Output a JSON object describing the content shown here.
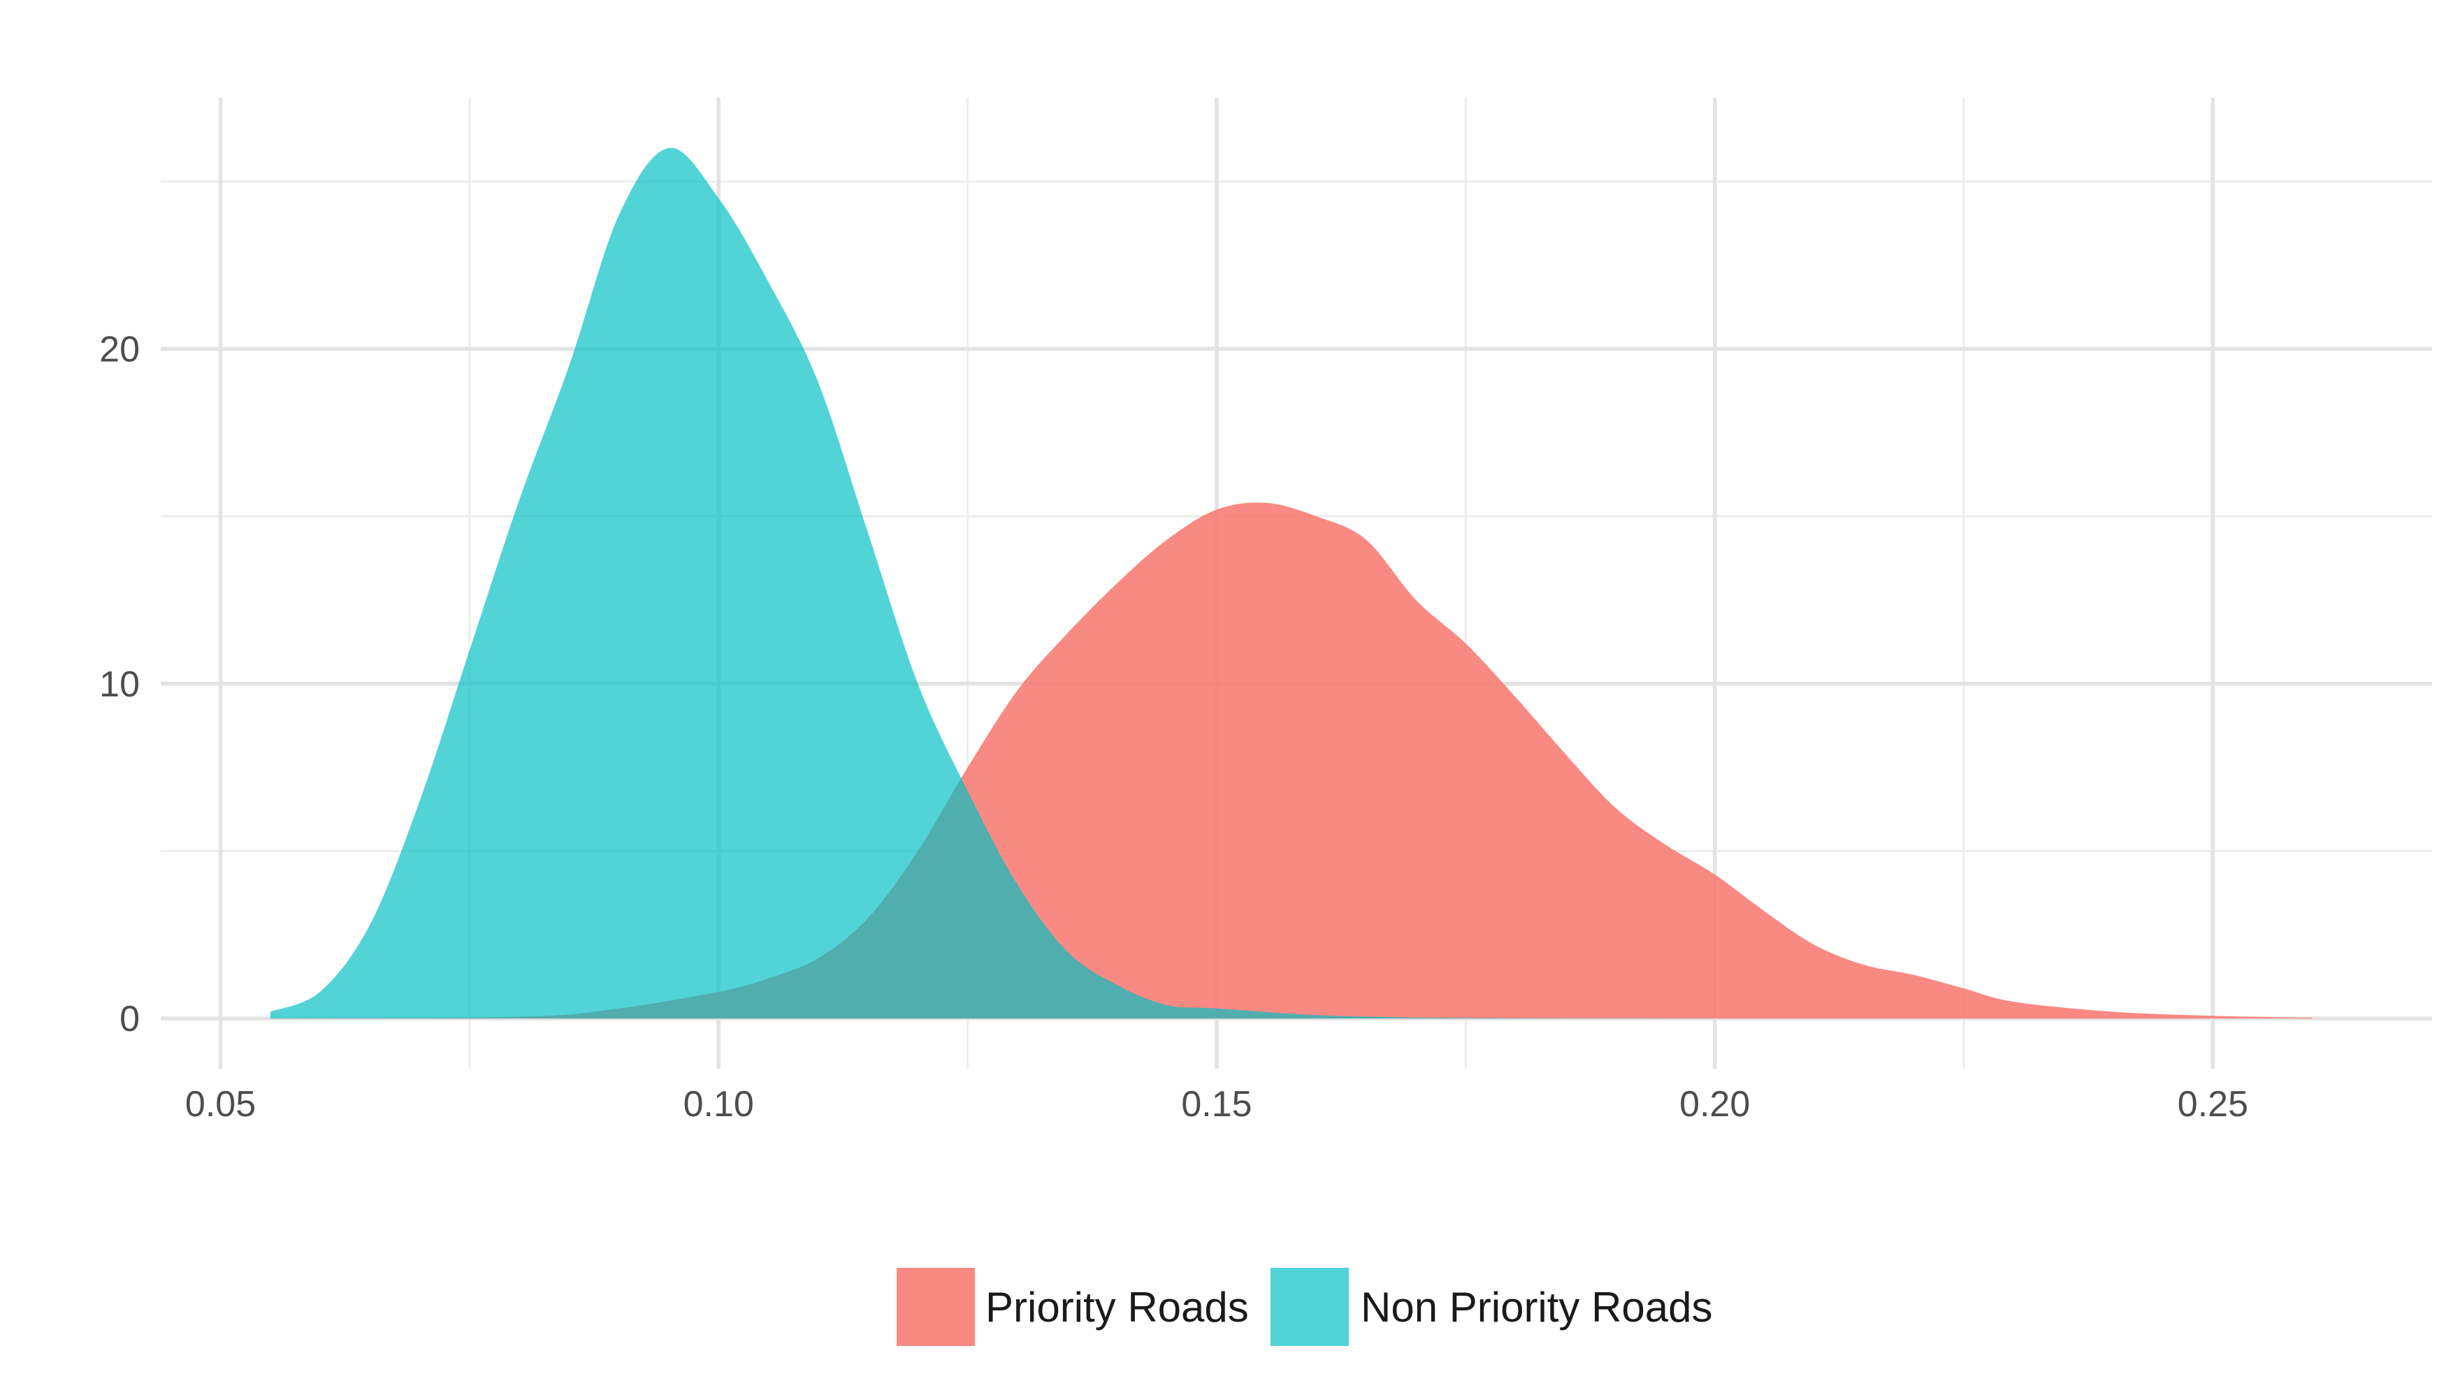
{
  "chart_data": {
    "type": "area",
    "chart_kind": "density",
    "title": "",
    "xlabel": "",
    "ylabel": "",
    "xlim": [
      0.044,
      0.272
    ],
    "ylim": [
      -1.5,
      27.5
    ],
    "x_ticks": [
      0.05,
      0.1,
      0.15,
      0.2,
      0.25
    ],
    "x_tick_labels": [
      "0.05",
      "0.10",
      "0.15",
      "0.20",
      "0.25"
    ],
    "x_minor_ticks": [
      0.075,
      0.125,
      0.175,
      0.225
    ],
    "y_ticks": [
      0,
      10,
      20
    ],
    "y_tick_labels": [
      "0",
      "10",
      "20"
    ],
    "y_minor_ticks": [
      5,
      15,
      25
    ],
    "grid": true,
    "legend_position": "bottom",
    "series": [
      {
        "name": "Priority Roads",
        "color": "#F8766D",
        "opacity": 0.85,
        "x": [
          0.055,
          0.08,
          0.09,
          0.1,
          0.105,
          0.11,
          0.115,
          0.12,
          0.125,
          0.13,
          0.135,
          0.14,
          0.145,
          0.15,
          0.155,
          0.16,
          0.165,
          0.17,
          0.175,
          0.18,
          0.185,
          0.19,
          0.195,
          0.2,
          0.205,
          0.21,
          0.215,
          0.22,
          0.225,
          0.23,
          0.24,
          0.25,
          0.26
        ],
        "values": [
          0,
          0.05,
          0.3,
          0.8,
          1.2,
          1.8,
          3.0,
          5.0,
          7.5,
          9.8,
          11.5,
          13.0,
          14.3,
          15.2,
          15.4,
          15.0,
          14.3,
          12.5,
          11.2,
          9.6,
          7.9,
          6.3,
          5.2,
          4.3,
          3.2,
          2.2,
          1.6,
          1.3,
          0.9,
          0.5,
          0.2,
          0.08,
          0.02
        ]
      },
      {
        "name": "Non Priority Roads",
        "color": "#00BFC4",
        "opacity": 0.68,
        "x": [
          0.055,
          0.06,
          0.065,
          0.07,
          0.075,
          0.08,
          0.085,
          0.09,
          0.095,
          0.1,
          0.105,
          0.11,
          0.115,
          0.12,
          0.125,
          0.13,
          0.135,
          0.14,
          0.145,
          0.15,
          0.16,
          0.17,
          0.18,
          0.19,
          0.2
        ],
        "values": [
          0.2,
          0.8,
          2.8,
          6.5,
          11.0,
          15.5,
          19.5,
          24.0,
          26.0,
          24.5,
          22.0,
          19.0,
          14.5,
          10.0,
          6.8,
          4.0,
          2.0,
          1.0,
          0.4,
          0.3,
          0.1,
          0.03,
          0.01,
          0.005,
          0
        ]
      }
    ]
  }
}
